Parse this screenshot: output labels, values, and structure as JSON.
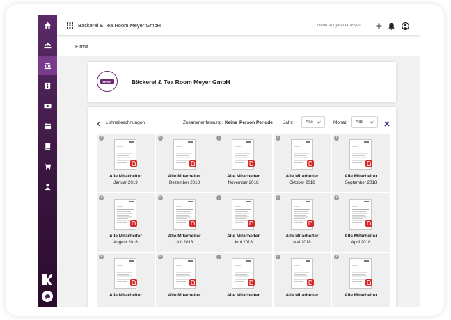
{
  "topbar": {
    "company": "Bäckerei & Tea Room Meyer GmbH",
    "task_placeholder": "Neue Aufgabe erfassen"
  },
  "subbar": {
    "title": "Firma"
  },
  "company_card": {
    "name": "Bäckerei & Tea Room Meyer GmbH",
    "logo_text": "Meyer"
  },
  "payroll": {
    "section_label": "Lohnabrechnungen",
    "summary_label": "Zusammenfassung:",
    "summary_options": [
      "Keine",
      "Person",
      "Periode"
    ],
    "year_label": "Jahr:",
    "year_value": "Alle",
    "month_label": "Monat:",
    "month_value": "Alle",
    "tiles": [
      {
        "title": "Alle Mitarbeiter",
        "date": "Januar 2019"
      },
      {
        "title": "Alle Mitarbeiter",
        "date": "Dezember 2018"
      },
      {
        "title": "Alle Mitarbeiter",
        "date": "November 2018"
      },
      {
        "title": "Alle Mitarbeiter",
        "date": "Oktober 2018"
      },
      {
        "title": "Alle Mitarbeiter",
        "date": "September 2018"
      },
      {
        "title": "Alle Mitarbeiter",
        "date": "August 2018"
      },
      {
        "title": "Alle Mitarbeiter",
        "date": "Juli 2018"
      },
      {
        "title": "Alle Mitarbeiter",
        "date": "Juni 2018"
      },
      {
        "title": "Alle Mitarbeiter",
        "date": "Mai 2018"
      },
      {
        "title": "Alle Mitarbeiter",
        "date": "April 2018"
      },
      {
        "title": "Alle Mitarbeiter",
        "date": ""
      },
      {
        "title": "Alle Mitarbeiter",
        "date": ""
      },
      {
        "title": "Alle Mitarbeiter",
        "date": ""
      },
      {
        "title": "Alle Mitarbeiter",
        "date": ""
      },
      {
        "title": "Alle Mitarbeiter",
        "date": ""
      }
    ]
  },
  "sidebar": {
    "items": [
      "home-icon",
      "users-icon",
      "bank-icon",
      "info-card-icon",
      "money-icon",
      "calendar-icon",
      "book-icon",
      "cart-icon",
      "person-icon"
    ],
    "active_index": 2
  },
  "colors": {
    "sidebar": "#4a1f55",
    "accent": "#7a3b8c",
    "pdf": "#d42a2a",
    "clear": "#3b3e8f"
  }
}
